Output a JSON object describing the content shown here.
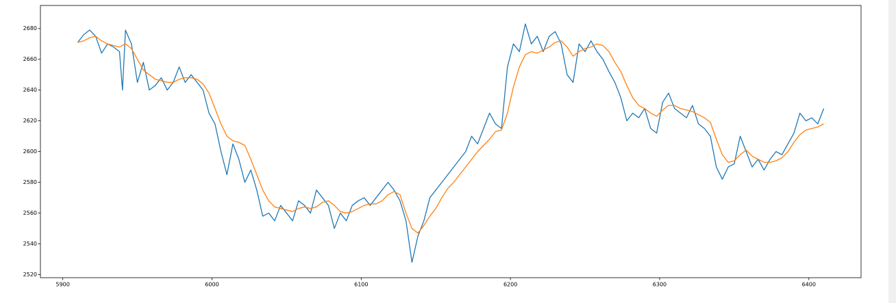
{
  "chart_data": {
    "type": "line",
    "x": [
      5910,
      5914,
      5918,
      5922,
      5926,
      5930,
      5934,
      5938,
      5940,
      5942,
      5946,
      5950,
      5954,
      5958,
      5962,
      5966,
      5970,
      5974,
      5978,
      5982,
      5986,
      5990,
      5994,
      5998,
      6002,
      6006,
      6010,
      6014,
      6018,
      6022,
      6026,
      6030,
      6034,
      6038,
      6042,
      6046,
      6050,
      6054,
      6058,
      6062,
      6066,
      6070,
      6074,
      6078,
      6082,
      6086,
      6090,
      6094,
      6098,
      6102,
      6106,
      6110,
      6114,
      6118,
      6122,
      6126,
      6130,
      6134,
      6138,
      6142,
      6146,
      6150,
      6154,
      6158,
      6162,
      6166,
      6170,
      6174,
      6178,
      6182,
      6186,
      6190,
      6194,
      6198,
      6202,
      6206,
      6210,
      6214,
      6218,
      6222,
      6226,
      6230,
      6234,
      6238,
      6242,
      6246,
      6250,
      6254,
      6258,
      6262,
      6266,
      6270,
      6274,
      6278,
      6282,
      6286,
      6290,
      6294,
      6298,
      6302,
      6306,
      6310,
      6314,
      6318,
      6322,
      6326,
      6330,
      6334,
      6338,
      6342,
      6346,
      6350,
      6354,
      6358,
      6362,
      6366,
      6370,
      6374,
      6378,
      6382,
      6386,
      6390,
      6394,
      6398,
      6402,
      6406,
      6410
    ],
    "series": [
      {
        "color": "#1f77b4",
        "values": [
          2671,
          2676,
          2679,
          2675,
          2664,
          2670,
          2668,
          2665,
          2640,
          2679,
          2670,
          2645,
          2658,
          2640,
          2643,
          2648,
          2640,
          2645,
          2655,
          2645,
          2650,
          2645,
          2640,
          2625,
          2618,
          2600,
          2585,
          2605,
          2595,
          2580,
          2588,
          2575,
          2558,
          2560,
          2555,
          2565,
          2560,
          2555,
          2568,
          2565,
          2560,
          2575,
          2570,
          2565,
          2550,
          2560,
          2555,
          2565,
          2568,
          2570,
          2565,
          2570,
          2575,
          2580,
          2575,
          2568,
          2555,
          2528,
          2545,
          2555,
          2570,
          2575,
          2580,
          2585,
          2590,
          2595,
          2600,
          2610,
          2605,
          2615,
          2625,
          2618,
          2615,
          2655,
          2670,
          2665,
          2683,
          2670,
          2675,
          2665,
          2675,
          2678,
          2670,
          2650,
          2645,
          2670,
          2665,
          2672,
          2665,
          2660,
          2652,
          2645,
          2635,
          2620,
          2625,
          2622,
          2628,
          2615,
          2612,
          2632,
          2638,
          2628,
          2625,
          2622,
          2630,
          2618,
          2615,
          2610,
          2590,
          2582,
          2590,
          2592,
          2610,
          2600,
          2590,
          2595,
          2588,
          2595,
          2600,
          2598,
          2605,
          2612,
          2625,
          2620,
          2622,
          2618,
          2628
        ]
      },
      {
        "color": "#ff7f0e",
        "values": [
          2671,
          2672,
          2674,
          2675,
          2672,
          2670,
          2669,
          2668,
          2669,
          2670,
          2667,
          2660,
          2653,
          2650,
          2647,
          2646,
          2645,
          2645,
          2647,
          2648,
          2648,
          2647,
          2644,
          2638,
          2628,
          2618,
          2610,
          2607,
          2606,
          2604,
          2595,
          2585,
          2575,
          2568,
          2564,
          2563,
          2562,
          2561,
          2563,
          2564,
          2563,
          2564,
          2567,
          2568,
          2565,
          2561,
          2560,
          2561,
          2563,
          2565,
          2566,
          2566,
          2568,
          2572,
          2574,
          2572,
          2560,
          2550,
          2547,
          2552,
          2558,
          2563,
          2570,
          2576,
          2580,
          2585,
          2590,
          2595,
          2600,
          2604,
          2608,
          2613,
          2614,
          2625,
          2642,
          2655,
          2663,
          2665,
          2664,
          2666,
          2668,
          2671,
          2672,
          2668,
          2662,
          2665,
          2667,
          2668,
          2670,
          2669,
          2665,
          2658,
          2652,
          2643,
          2635,
          2630,
          2628,
          2625,
          2623,
          2627,
          2630,
          2630,
          2628,
          2627,
          2626,
          2624,
          2622,
          2619,
          2608,
          2598,
          2593,
          2594,
          2598,
          2601,
          2597,
          2595,
          2593,
          2593,
          2594,
          2596,
          2600,
          2606,
          2611,
          2614,
          2615,
          2616,
          2618
        ]
      }
    ],
    "xlim": [
      5885,
      6435
    ],
    "xticks": [
      5900,
      6000,
      6100,
      6200,
      6300,
      6400
    ],
    "ylim": [
      2518,
      2695
    ],
    "yticks": [
      2520,
      2540,
      2560,
      2580,
      2600,
      2620,
      2640,
      2660,
      2680
    ]
  }
}
